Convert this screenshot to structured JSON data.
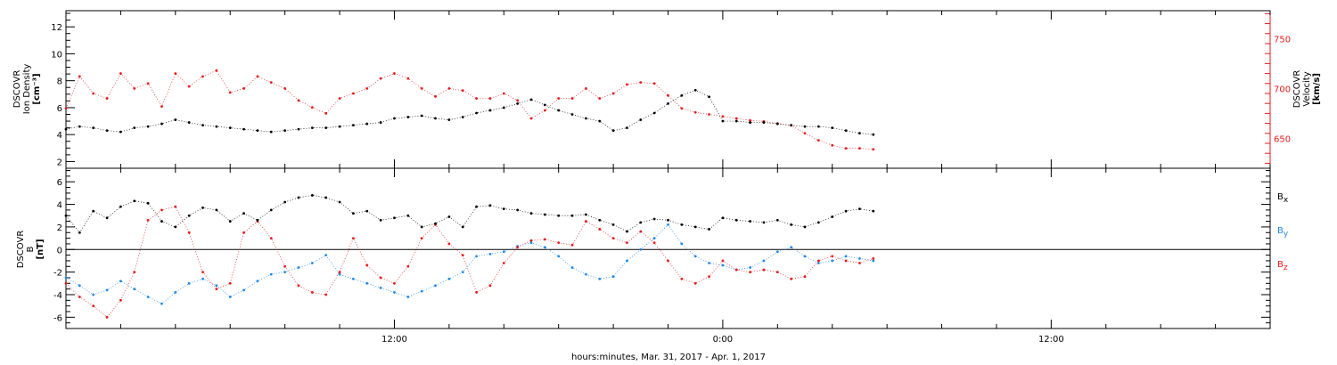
{
  "colors": {
    "black": "#000000",
    "red": "#e31a1c",
    "blue": "#1e88e5"
  },
  "chart_data": [
    {
      "type": "scatter",
      "panel": "top",
      "ylabel_left": [
        "DSCOVR",
        "Ion Density",
        "[cm⁻³]"
      ],
      "ylabel_right": [
        "DSCOVR",
        "Velocity",
        "[km/s]"
      ],
      "ylim_left": [
        1.5,
        13.2
      ],
      "ylim_right": [
        620,
        778
      ],
      "yticks_left": [
        "2",
        "4",
        "6",
        "8",
        "10",
        "12"
      ],
      "yticks_right": [
        "650",
        "700",
        "750"
      ],
      "x_range_hours": [
        0,
        44
      ],
      "series": [
        {
          "role": "ion density (left axis)",
          "color": "black",
          "x": [
            0,
            0.5,
            1,
            1.5,
            2,
            2.5,
            3,
            3.5,
            4,
            4.5,
            5,
            5.5,
            6,
            6.5,
            7,
            7.5,
            8,
            8.5,
            9,
            9.5,
            10,
            10.5,
            11,
            11.5,
            12,
            12.5,
            13,
            13.5,
            14,
            14.5,
            15,
            15.5,
            16,
            16.5,
            17,
            17.5,
            18,
            18.5,
            19,
            19.5,
            20,
            20.5,
            21,
            21.5,
            22,
            22.5,
            23,
            23.5,
            24,
            24.5,
            25,
            25.5,
            26,
            26.5,
            27,
            27.5,
            28,
            28.5,
            29,
            29.5
          ],
          "y": [
            4.4,
            4.6,
            4.5,
            4.3,
            4.2,
            4.5,
            4.6,
            4.8,
            5.1,
            4.9,
            4.7,
            4.6,
            4.5,
            4.4,
            4.3,
            4.2,
            4.3,
            4.4,
            4.5,
            4.5,
            4.6,
            4.7,
            4.8,
            4.9,
            5.2,
            5.3,
            5.4,
            5.2,
            5.1,
            5.3,
            5.6,
            5.8,
            6.0,
            6.3,
            6.6,
            6.2,
            5.8,
            5.5,
            5.2,
            5.0,
            4.3,
            4.5,
            5.1,
            5.6,
            6.3,
            6.9,
            7.3,
            6.8,
            5.0,
            5.0,
            4.9,
            4.9,
            4.8,
            4.7,
            4.6,
            4.6,
            4.5,
            4.3,
            4.1,
            4.0
          ]
        },
        {
          "role": "velocity (right axis)",
          "color": "red",
          "x": [
            0,
            0.5,
            1,
            1.5,
            2,
            2.5,
            3,
            3.5,
            4,
            4.5,
            5,
            5.5,
            6,
            6.5,
            7,
            7.5,
            8,
            8.5,
            9,
            9.5,
            10,
            10.5,
            11,
            11.5,
            12,
            12.5,
            13,
            13.5,
            14,
            14.5,
            15,
            15.5,
            16,
            16.5,
            17,
            17.5,
            18,
            18.5,
            19,
            19.5,
            20,
            20.5,
            21,
            21.5,
            22,
            22.5,
            23,
            23.5,
            24,
            24.5,
            25,
            25.5,
            26,
            26.5,
            27,
            27.5,
            28,
            28.5,
            29,
            29.5
          ],
          "y": [
            680,
            712,
            695,
            690,
            715,
            700,
            705,
            682,
            715,
            702,
            712,
            718,
            696,
            700,
            712,
            706,
            700,
            688,
            681,
            675,
            690,
            695,
            700,
            710,
            715,
            710,
            700,
            692,
            700,
            698,
            690,
            690,
            695,
            688,
            670,
            678,
            690,
            690,
            700,
            690,
            695,
            704,
            706,
            705,
            693,
            680,
            676,
            674,
            672,
            670,
            668,
            667,
            665,
            663,
            655,
            648,
            643,
            640,
            640,
            639
          ]
        }
      ]
    },
    {
      "type": "scatter",
      "panel": "bottom",
      "ylabel_left": [
        "DSCOVR",
        "B",
        "[nT]"
      ],
      "ylim": [
        -7,
        7.2
      ],
      "yticks": [
        "-6",
        "-4",
        "-2",
        "0",
        "2",
        "4",
        "6"
      ],
      "x_range_hours": [
        0,
        44
      ],
      "series": [
        {
          "name": "Bₓ",
          "color": "black",
          "x": [
            0,
            0.5,
            1,
            1.5,
            2,
            2.5,
            3,
            3.5,
            4,
            4.5,
            5,
            5.5,
            6,
            6.5,
            7,
            7.5,
            8,
            8.5,
            9,
            9.5,
            10,
            10.5,
            11,
            11.5,
            12,
            12.5,
            13,
            13.5,
            14,
            14.5,
            15,
            15.5,
            16,
            16.5,
            17,
            17.5,
            18,
            18.5,
            19,
            19.5,
            20,
            20.5,
            21,
            21.5,
            22,
            22.5,
            23,
            23.5,
            24,
            24.5,
            25,
            25.5,
            26,
            26.5,
            27,
            27.5,
            28,
            28.5,
            29,
            29.5
          ],
          "y": [
            3.0,
            1.5,
            3.4,
            2.8,
            3.8,
            4.3,
            4.1,
            2.5,
            2.0,
            3.0,
            3.7,
            3.5,
            2.5,
            3.2,
            2.6,
            3.5,
            4.2,
            4.6,
            4.8,
            4.6,
            4.2,
            3.2,
            3.4,
            2.6,
            2.8,
            3.0,
            2.0,
            2.3,
            2.9,
            2.0,
            3.8,
            3.9,
            3.6,
            3.5,
            3.2,
            3.1,
            3.0,
            3.0,
            3.1,
            2.6,
            2.2,
            1.6,
            2.4,
            2.7,
            2.6,
            2.2,
            2.0,
            1.8,
            2.8,
            2.6,
            2.5,
            2.4,
            2.6,
            2.2,
            2.0,
            2.4,
            2.9,
            3.4,
            3.6,
            3.4
          ]
        },
        {
          "name": "Bᵧ",
          "color": "blue",
          "x": [
            0,
            0.5,
            1,
            1.5,
            2,
            2.5,
            3,
            3.5,
            4,
            4.5,
            5,
            5.5,
            6,
            6.5,
            7,
            7.5,
            8,
            8.5,
            9,
            9.5,
            10,
            10.5,
            11,
            11.5,
            12,
            12.5,
            13,
            13.5,
            14,
            14.5,
            15,
            15.5,
            16,
            16.5,
            17,
            17.5,
            18,
            18.5,
            19,
            19.5,
            20,
            20.5,
            21,
            21.5,
            22,
            22.5,
            23,
            23.5,
            24,
            24.5,
            25,
            25.5,
            26,
            26.5,
            27,
            27.5,
            28,
            28.5,
            29,
            29.5
          ],
          "y": [
            -2.5,
            -3.2,
            -4.0,
            -3.6,
            -2.8,
            -3.5,
            -4.2,
            -4.8,
            -3.8,
            -3.0,
            -2.6,
            -3.2,
            -4.2,
            -3.6,
            -2.8,
            -2.2,
            -2.0,
            -1.6,
            -1.2,
            -0.5,
            -2.2,
            -2.6,
            -3.0,
            -3.4,
            -3.8,
            -4.2,
            -3.7,
            -3.2,
            -2.6,
            -2.0,
            -0.6,
            -0.4,
            -0.2,
            0.3,
            0.6,
            0.2,
            -0.6,
            -1.6,
            -2.2,
            -2.6,
            -2.4,
            -1.0,
            0.0,
            1.0,
            2.2,
            0.5,
            -0.6,
            -1.2,
            -1.4,
            -1.8,
            -1.6,
            -1.0,
            -0.2,
            0.2,
            -0.6,
            -1.2,
            -1.0,
            -0.6,
            -0.8,
            -1.0
          ]
        },
        {
          "name": "B_z",
          "color": "red",
          "x": [
            0,
            0.5,
            1,
            1.5,
            2,
            2.5,
            3,
            3.5,
            4,
            4.5,
            5,
            5.5,
            6,
            6.5,
            7,
            7.5,
            8,
            8.5,
            9,
            9.5,
            10,
            10.5,
            11,
            11.5,
            12,
            12.5,
            13,
            13.5,
            14,
            14.5,
            15,
            15.5,
            16,
            16.5,
            17,
            17.5,
            18,
            18.5,
            19,
            19.5,
            20,
            20.5,
            21,
            21.5,
            22,
            22.5,
            23,
            23.5,
            24,
            24.5,
            25,
            25.5,
            26,
            26.5,
            27,
            27.5,
            28,
            28.5,
            29,
            29.5
          ],
          "y": [
            -3.0,
            -4.2,
            -5.0,
            -6.0,
            -4.5,
            -2.0,
            2.6,
            3.5,
            3.8,
            1.5,
            -2.0,
            -3.5,
            -3.0,
            1.5,
            2.5,
            1.0,
            -1.5,
            -3.2,
            -3.8,
            -4.0,
            -2.0,
            1.0,
            -1.4,
            -2.5,
            -3.0,
            -1.5,
            1.0,
            2.2,
            0.5,
            -0.5,
            -3.8,
            -3.2,
            -1.2,
            0.2,
            0.8,
            0.9,
            0.6,
            0.4,
            2.5,
            1.8,
            1.0,
            0.6,
            1.6,
            0.6,
            -1.0,
            -2.6,
            -3.0,
            -2.4,
            -1.0,
            -1.8,
            -2.0,
            -1.8,
            -2.0,
            -2.6,
            -2.4,
            -1.0,
            -0.6,
            -1.0,
            -1.2,
            -0.8
          ]
        }
      ]
    }
  ],
  "x_axis": {
    "label": "hours:minutes, Mar. 31, 2017 - Apr.  1, 2017",
    "tick_labels": [
      {
        "hours": 12,
        "text": "12:00"
      },
      {
        "hours": 24,
        "text": "0:00"
      },
      {
        "hours": 36,
        "text": "12:00"
      }
    ]
  },
  "legend_bottom": {
    "bx_label": "B",
    "bx_sub": "x",
    "by_label": "B",
    "by_sub": "y",
    "bz_label": "B",
    "bz_sub": "z"
  }
}
